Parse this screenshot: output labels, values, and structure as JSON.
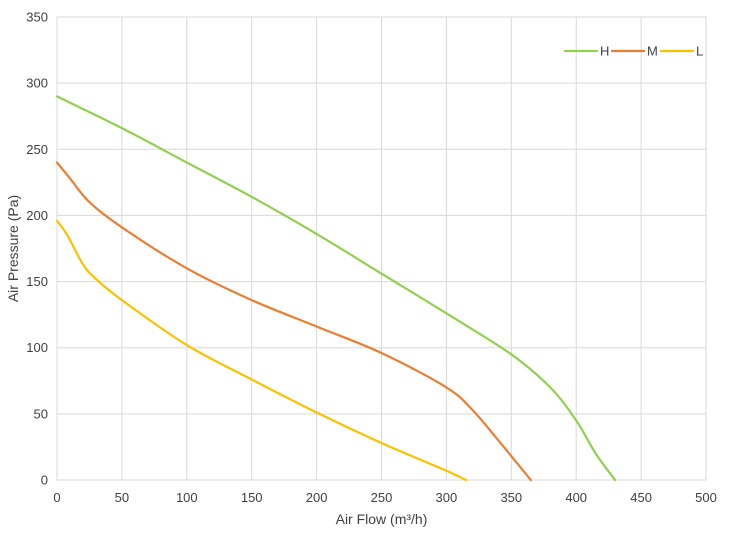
{
  "chart_data": {
    "type": "line",
    "title": "",
    "xlabel": "Air Flow  (m³/h)",
    "ylabel": "Air Pressure  (Pa)",
    "xlim": [
      0,
      500
    ],
    "ylim": [
      0,
      350
    ],
    "x_ticks": [
      0,
      50,
      100,
      150,
      200,
      250,
      300,
      350,
      400,
      450,
      500
    ],
    "y_ticks": [
      0,
      50,
      100,
      150,
      200,
      250,
      300,
      350
    ],
    "grid": true,
    "legend": {
      "position": "top-right"
    },
    "series": [
      {
        "name": "H",
        "color": "#92d050",
        "points": [
          [
            0,
            290
          ],
          [
            50,
            266
          ],
          [
            100,
            240
          ],
          [
            150,
            214
          ],
          [
            200,
            186
          ],
          [
            250,
            156
          ],
          [
            300,
            126
          ],
          [
            350,
            95
          ],
          [
            380,
            70
          ],
          [
            400,
            45
          ],
          [
            415,
            20
          ],
          [
            430,
            0
          ]
        ]
      },
      {
        "name": "M",
        "color": "#ed7d31",
        "points": [
          [
            0,
            240
          ],
          [
            10,
            228
          ],
          [
            25,
            210
          ],
          [
            50,
            191
          ],
          [
            100,
            160
          ],
          [
            150,
            136
          ],
          [
            200,
            116
          ],
          [
            250,
            96
          ],
          [
            300,
            70
          ],
          [
            320,
            53
          ],
          [
            340,
            30
          ],
          [
            355,
            12
          ],
          [
            365,
            0
          ]
        ]
      },
      {
        "name": "L",
        "color": "#ffc000",
        "points": [
          [
            0,
            196
          ],
          [
            8,
            185
          ],
          [
            20,
            163
          ],
          [
            30,
            152
          ],
          [
            50,
            136
          ],
          [
            100,
            102
          ],
          [
            150,
            76
          ],
          [
            200,
            51
          ],
          [
            250,
            28
          ],
          [
            300,
            7
          ],
          [
            315,
            0
          ]
        ]
      }
    ]
  }
}
